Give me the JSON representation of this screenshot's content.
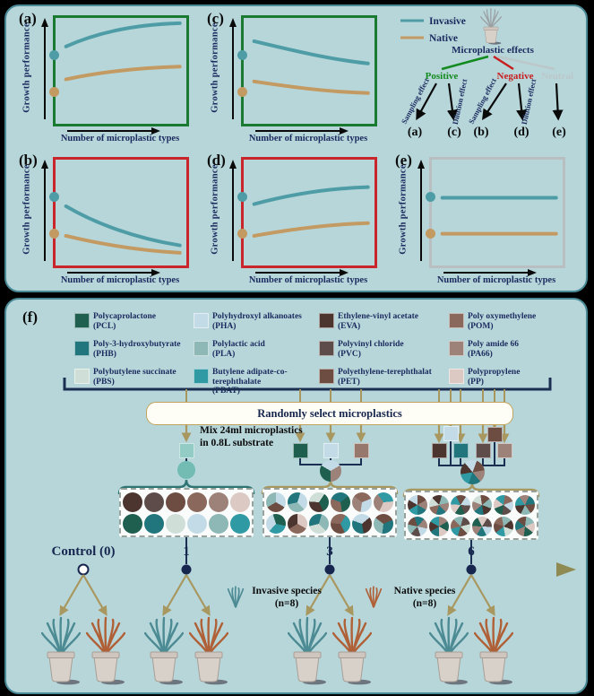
{
  "colors": {
    "panel_bg": "#b7d6da",
    "panel_border": "#4a8a96",
    "invasive_line": "#4e9da6",
    "native_line": "#c39a62",
    "navy_text": "#1b2a5e",
    "positive_green": "#128a1e",
    "negative_red": "#c81e1e",
    "neutral_gray": "#bcc7c9",
    "box_green": "#1b7a31",
    "box_red": "#c9252b",
    "box_gray": "#b9bfc0",
    "tan_arrow": "#a8975f",
    "bracket_navy": "#1b2f52",
    "invasive_plant": "#4c8b93",
    "native_plant": "#b06036"
  },
  "top": {
    "axis": {
      "y": "Growth performance",
      "x": "Number of microplastic types"
    },
    "legend": {
      "invasive": "Invasive",
      "native": "Native"
    },
    "panels": [
      {
        "id": "a",
        "label": "(a)",
        "border": "#1b7a31",
        "trend": "rise_saturating",
        "description": "Both species increase with number of microplastic types, saturating"
      },
      {
        "id": "c",
        "label": "(c)",
        "border": "#1b7a31",
        "trend": "fall_gentle",
        "description": "Both species decrease gently with number of microplastic types"
      },
      {
        "id": "b",
        "label": "(b)",
        "border": "#c9252b",
        "trend": "fall_steep",
        "description": "Both species decrease steeply with number of microplastic types"
      },
      {
        "id": "d",
        "label": "(d)",
        "border": "#c9252b",
        "trend": "rise_gentle",
        "description": "Both species increase gently with number of microplastic types"
      },
      {
        "id": "e",
        "label": "(e)",
        "border": "#b9bfc0",
        "trend": "flat",
        "description": "Growth performance unchanged across number of microplastic types"
      }
    ],
    "flow": {
      "title": "Microplastic effects",
      "branches": [
        {
          "label": "Positive",
          "arrows": [
            {
              "label": "Sampling effect",
              "target": "(a)"
            },
            {
              "label": "Dilution effect",
              "target": "(c)"
            }
          ]
        },
        {
          "label": "Negative",
          "arrows": [
            {
              "label": "Sampling effect",
              "target": "(b)"
            },
            {
              "label": "Dilution effect",
              "target": "(d)"
            }
          ]
        },
        {
          "label": "Neutral",
          "arrows": [
            {
              "label": "",
              "target": "(e)"
            }
          ]
        }
      ],
      "targets": [
        "(a)",
        "(c)",
        "(b)",
        "(d)",
        "(e)"
      ]
    }
  },
  "bottom": {
    "label": "(f)",
    "select_label": "Randomly select microplastics",
    "mix_line1": "Mix 24ml microplastics",
    "mix_line2": "in 0.8L substrate",
    "microplastics": [
      {
        "name": "Polycaprolactone",
        "abbr": "(PCL)",
        "color": "#1e5f4f"
      },
      {
        "name": "Poly-3-hydroxybutyrate",
        "abbr": "(PHB)",
        "color": "#20767c"
      },
      {
        "name": "Polybutylene succinate",
        "abbr": "(PBS)",
        "color": "#cfdfd8"
      },
      {
        "name": "Polyhydroxyl alkanoates",
        "abbr": "(PHA)",
        "color": "#c3dbe6"
      },
      {
        "name": "Polylactic acid",
        "abbr": "(PLA)",
        "color": "#8db8b5"
      },
      {
        "name": "Butylene adipate-co-terephthalate",
        "abbr": "(PBAT)",
        "color": "#2f9aa3"
      },
      {
        "name": "Ethylene-vinyl acetate",
        "abbr": "(EVA)",
        "color": "#4b352e"
      },
      {
        "name": "Polyvinyl chloride",
        "abbr": "(PVC)",
        "color": "#5e4c4a"
      },
      {
        "name": "Polyethylene-terephthalat",
        "abbr": "(PET)",
        "color": "#6d4c41"
      },
      {
        "name": "Poly oxymethylene",
        "abbr": "(POM)",
        "color": "#8a685c"
      },
      {
        "name": "Poly amide 66",
        "abbr": "(PA66)",
        "color": "#9c8279"
      },
      {
        "name": "Polypropylene",
        "abbr": "(PP)",
        "color": "#dcc9c4"
      }
    ],
    "mix_groups": {
      "single_square": "#93cbc5",
      "single_circle": "#72bcb4",
      "triple_squares": [
        "#1e5f4f",
        "#c3dbe6",
        "#97786d"
      ],
      "triple_pie": [
        "#c3dbe6",
        "#9c8279",
        "#1e5f4f"
      ],
      "six_squares_row1": [
        "#c3dbe6",
        "#6d4c41"
      ],
      "six_squares_row2": [
        "#4b352e",
        "#20767c",
        "#5e4c4a",
        "#9c8279"
      ],
      "six_pie": [
        "#6d4c41",
        "#9c8279",
        "#20767c",
        "#2f9aa3",
        "#4b352e",
        "#c3dbe6"
      ]
    },
    "treatments": {
      "single": [
        "#4b352e",
        "#5e4c4a",
        "#6d4c41",
        "#8a685c",
        "#9c8279",
        "#dcc9c4",
        "#1e5f4f",
        "#20767c",
        "#cfdfd8",
        "#c3dbe6",
        "#8db8b5",
        "#2f9aa3"
      ],
      "triple": [
        [
          "#c3dbe6",
          "#6d4c41",
          "#8db8b5"
        ],
        [
          "#8db8b5",
          "#20767c",
          "#c3dbe6"
        ],
        [
          "#cfdfd8",
          "#1e5f4f",
          "#4b352e"
        ],
        [
          "#1e5f4f",
          "#8a685c",
          "#20767c"
        ],
        [
          "#9c8279",
          "#8a685c",
          "#c3dbe6"
        ],
        [
          "#2f9aa3",
          "#dcc9c4",
          "#9c8279"
        ],
        [
          "#2f9aa3",
          "#c3dbe6",
          "#1e5f4f"
        ],
        [
          "#4b352e",
          "#dcc9c4",
          "#8a685c"
        ],
        [
          "#8db8b5",
          "#cfdfd8",
          "#20767c"
        ],
        [
          "#6d4c41",
          "#8a685c",
          "#2f9aa3"
        ],
        [
          "#c3dbe6",
          "#4b352e",
          "#20767c"
        ],
        [
          "#20767c",
          "#8db8b5",
          "#6d4c41"
        ]
      ],
      "six": [
        [
          "#6d4c41",
          "#9c8279",
          "#20767c",
          "#2f9aa3",
          "#4b352e",
          "#c3dbe6"
        ],
        [
          "#20767c",
          "#8a685c",
          "#cfdfd8",
          "#4b352e",
          "#8db8b5",
          "#9c8279"
        ],
        [
          "#2f9aa3",
          "#6d4c41",
          "#c3dbe6",
          "#5e4c4a",
          "#1e5f4f",
          "#dcc9c4"
        ],
        [
          "#8db8b5",
          "#4b352e",
          "#20767c",
          "#9c8279",
          "#cfdfd8",
          "#6d4c41"
        ],
        [
          "#1e5f4f",
          "#dcc9c4",
          "#2f9aa3",
          "#8a685c",
          "#c3dbe6",
          "#5e4c4a"
        ],
        [
          "#9c8279",
          "#20767c",
          "#6d4c41",
          "#8db8b5",
          "#4b352e",
          "#2f9aa3"
        ],
        [
          "#c3dbe6",
          "#5e4c4a",
          "#8db8b5",
          "#6d4c41",
          "#20767c",
          "#9c8279"
        ],
        [
          "#4b352e",
          "#2f9aa3",
          "#9c8279",
          "#1e5f4f",
          "#dcc9c4",
          "#20767c"
        ],
        [
          "#5e4c4a",
          "#cfdfd8",
          "#6d4c41",
          "#2f9aa3",
          "#8a685c",
          "#8db8b5"
        ],
        [
          "#20767c",
          "#9c8279",
          "#1e5f4f",
          "#dcc9c4",
          "#5e4c4a",
          "#c3dbe6"
        ],
        [
          "#8a685c",
          "#8db8b5",
          "#4b352e",
          "#cfdfd8",
          "#2f9aa3",
          "#6d4c41"
        ],
        [
          "#dcc9c4",
          "#1e5f4f",
          "#9c8279",
          "#20767c",
          "#6d4c41",
          "#8db8b5"
        ]
      ]
    },
    "timeline": {
      "control_label": "Control (0)",
      "ticks": [
        "1",
        "3",
        "6"
      ],
      "invasive_species": "Invasive species",
      "invasive_n": "(n=8)",
      "native_species": "Native species",
      "native_n": "(n=8)"
    }
  }
}
